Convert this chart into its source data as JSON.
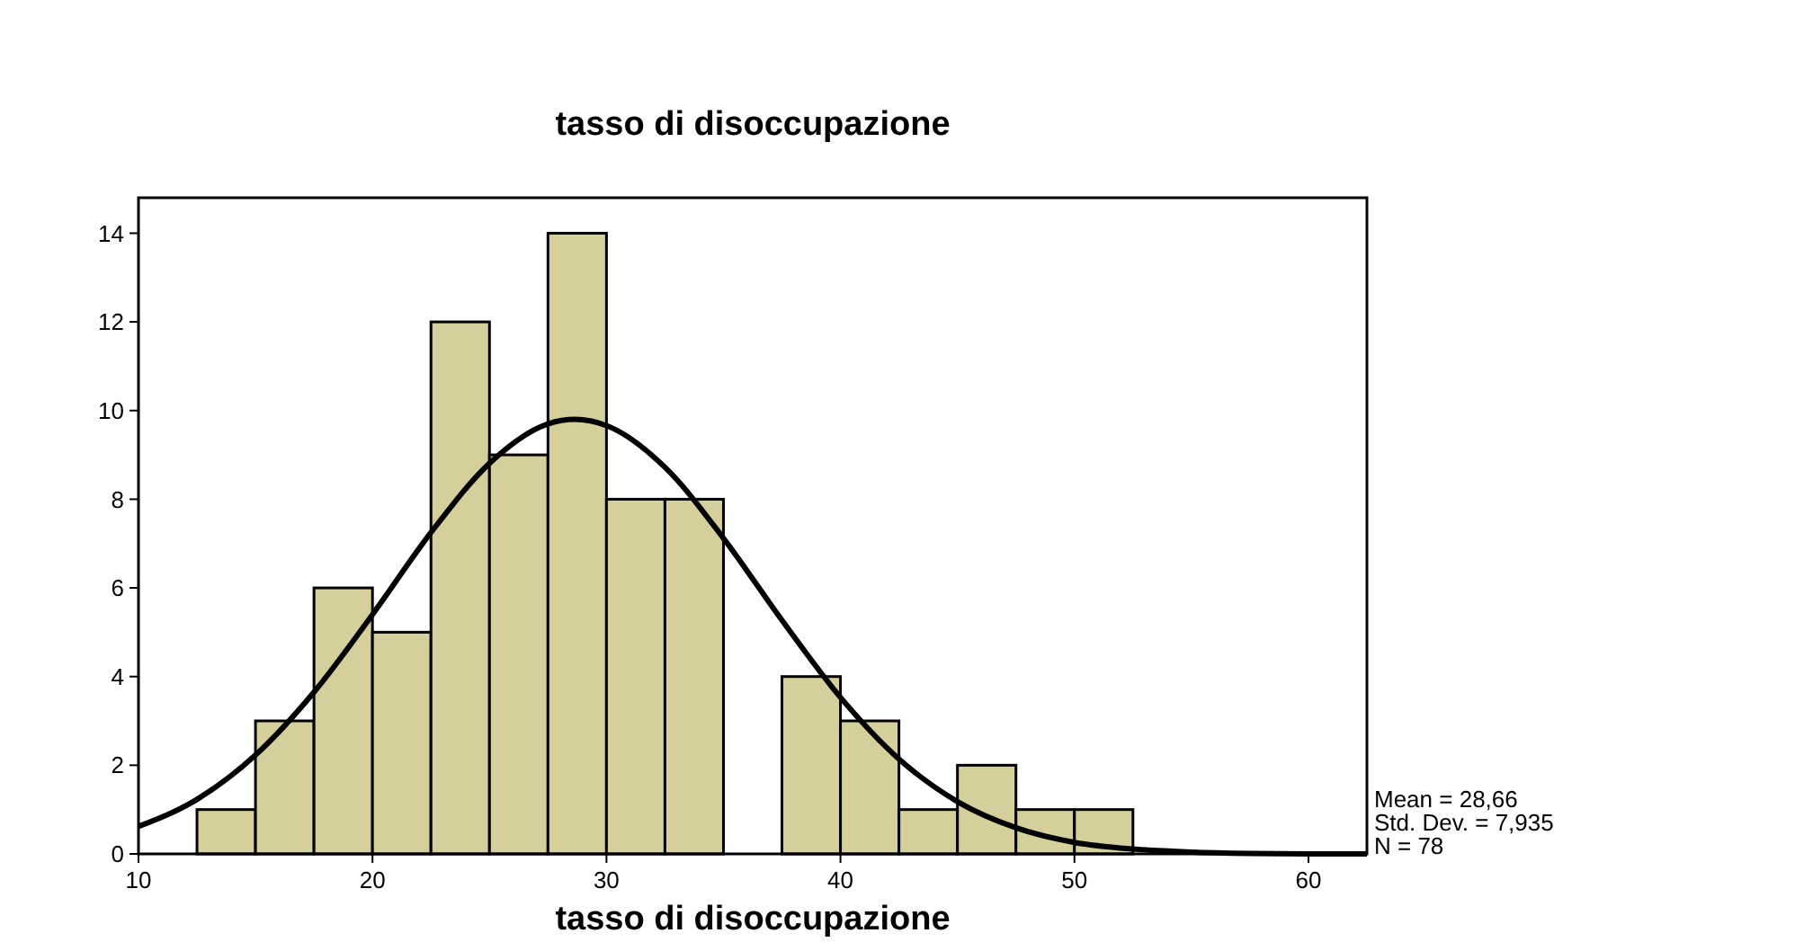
{
  "chart_data": {
    "type": "histogram",
    "title": "tasso di disoccupazione",
    "xlabel": "tasso di disoccupazione",
    "bins": [
      12.5,
      15,
      17.5,
      20,
      22.5,
      25,
      27.5,
      30,
      32.5,
      35,
      37.5,
      40,
      42.5,
      45,
      47.5,
      50,
      52.5
    ],
    "values": [
      1,
      3,
      6,
      5,
      12,
      9,
      14,
      8,
      8,
      0,
      4,
      3,
      1,
      2,
      1,
      1
    ],
    "color": "#d4cf9b",
    "series": [
      {
        "type": "line",
        "color": "#000000",
        "x": [
          10,
          12.5,
          15,
          17.5,
          20,
          22.5,
          25,
          27.5,
          28.66,
          30,
          32.5,
          35,
          37.5,
          40,
          42.5,
          45,
          47.5,
          50,
          52.5,
          55,
          57.5,
          60,
          62.5
        ],
        "values": [
          0.62,
          1.23,
          2.23,
          3.65,
          5.4,
          7.25,
          8.81,
          9.7,
          9.8,
          9.66,
          8.72,
          7.12,
          5.27,
          3.53,
          2.14,
          1.18,
          0.59,
          0.26,
          0.11,
          0.04,
          0.01,
          0,
          0
        ]
      }
    ],
    "xlim": [
      10,
      62.5
    ],
    "xticks": [
      10,
      20,
      30,
      40,
      50,
      60
    ],
    "ylim": [
      0,
      14.8
    ],
    "yticks": [
      0,
      2,
      4,
      6,
      8,
      10,
      12,
      14
    ],
    "grid": false,
    "annotations": [
      "Mean = 28,66",
      "Std. Dev. = 7,935",
      "N = 78"
    ]
  }
}
